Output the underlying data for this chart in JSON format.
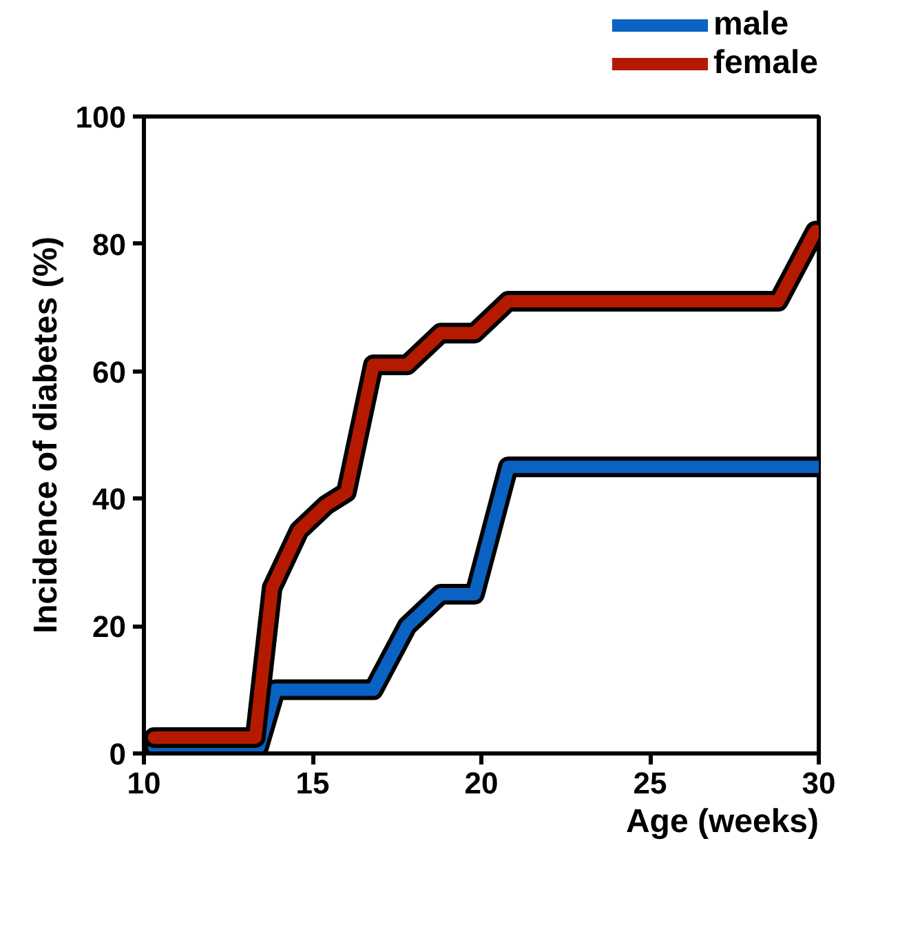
{
  "chart_data": {
    "type": "line",
    "xlabel": "Age (weeks)",
    "ylabel": "Incidence of diabetes (%)",
    "xlim": [
      10,
      30
    ],
    "xticks": [
      10,
      15,
      20,
      25,
      30
    ],
    "ylim": [
      0,
      100
    ],
    "yticks": [
      0,
      20,
      40,
      60,
      80,
      100
    ],
    "grid": false,
    "legend": "top right",
    "marker": "none",
    "line_style": "solid",
    "series": [
      {
        "name": "male",
        "color": "#0a62c2",
        "x": [
          10.3,
          13.4,
          13.9,
          16.8,
          17.8,
          18.8,
          19.8,
          20.8,
          30
        ],
        "values": [
          1,
          1,
          10,
          10,
          20,
          25,
          25,
          45,
          45
        ]
      },
      {
        "name": "female",
        "color": "#b51a00",
        "x": [
          10.3,
          13.3,
          13.8,
          14.6,
          15.4,
          16.0,
          16.8,
          17.8,
          18.8,
          19.8,
          20.8,
          28.8,
          29.9
        ],
        "values": [
          2.5,
          2.5,
          26,
          35,
          39,
          41,
          61,
          61,
          66,
          66,
          71,
          71,
          82
        ]
      }
    ]
  }
}
